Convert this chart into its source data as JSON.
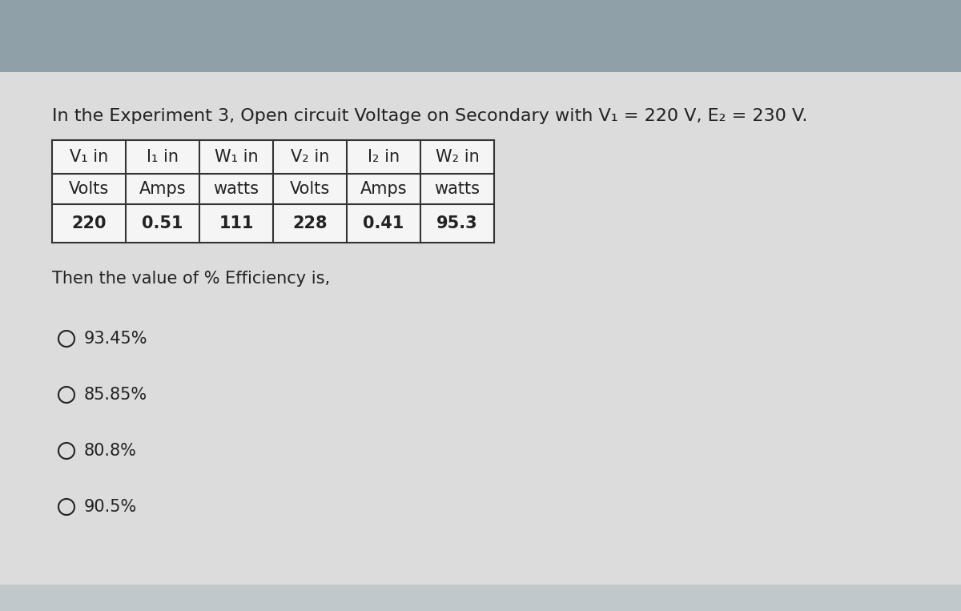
{
  "title": "In the Experiment 3, Open circuit Voltage on Secondary with V₁ = 220 V, E₂ = 230 V.",
  "top_bg_color": "#8fa0a8",
  "card_color": "#dcdcdc",
  "bottom_bg_color": "#c0c8cc",
  "table_headers_row1": [
    "V₁ in",
    "I₁ in",
    "W₁ in",
    "V₂ in",
    "I₂ in",
    "W₂ in"
  ],
  "table_headers_row2": [
    "Volts",
    "Amps",
    "watts",
    "Volts",
    "Amps",
    "watts"
  ],
  "table_data": [
    "220",
    "0.51",
    "111",
    "228",
    "0.41",
    "95.3"
  ],
  "question": "Then the value of % Efficiency is,",
  "options": [
    "93.45%",
    "85.85%",
    "80.8%",
    "90.5%"
  ],
  "title_fontsize": 16,
  "header_fontsize": 15,
  "data_fontsize": 15,
  "question_fontsize": 15,
  "option_fontsize": 15,
  "title_color": "#222222",
  "text_color": "#222222",
  "table_border_color": "#333333",
  "header_bg": "#f5f5f5",
  "data_bg": "#f5f5f5"
}
